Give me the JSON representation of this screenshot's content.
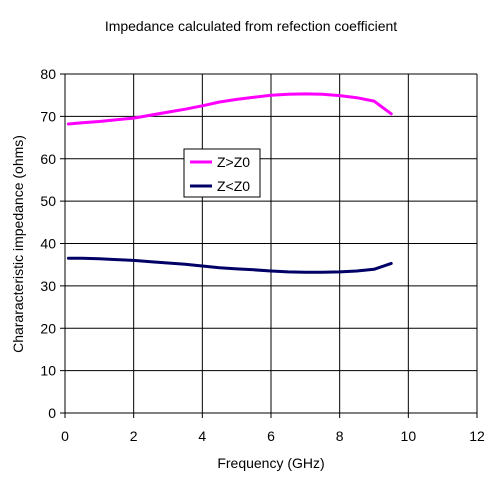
{
  "chart_data": {
    "type": "line",
    "title": "Impedance calculated from refection coefficient",
    "xlabel": "Frequency (GHz)",
    "ylabel": "Chararacteristic impedance (ohms)",
    "xlim": [
      0,
      12
    ],
    "ylim": [
      0,
      80
    ],
    "xticks": [
      0,
      2,
      4,
      6,
      8,
      10,
      12
    ],
    "yticks": [
      0,
      10,
      20,
      30,
      40,
      50,
      60,
      70,
      80
    ],
    "grid": true,
    "legend_position": "center-left",
    "series": [
      {
        "name": "Z>Z0",
        "color": "#ff00ff",
        "x": [
          0.1,
          0.5,
          1,
          1.5,
          2,
          2.5,
          3,
          3.5,
          4,
          4.5,
          5,
          5.5,
          6,
          6.5,
          7,
          7.5,
          8,
          8.5,
          9,
          9.5
        ],
        "y": [
          68.2,
          68.5,
          68.8,
          69.2,
          69.6,
          70.3,
          71.0,
          71.7,
          72.5,
          73.4,
          74.0,
          74.5,
          75.0,
          75.2,
          75.3,
          75.2,
          74.9,
          74.4,
          73.6,
          70.6
        ]
      },
      {
        "name": "Z<Z0",
        "color": "#000066",
        "x": [
          0.1,
          0.5,
          1,
          1.5,
          2,
          2.5,
          3,
          3.5,
          4,
          4.5,
          5,
          5.5,
          6,
          6.5,
          7,
          7.5,
          8,
          8.5,
          9,
          9.5
        ],
        "y": [
          36.5,
          36.5,
          36.4,
          36.2,
          36.0,
          35.7,
          35.4,
          35.1,
          34.7,
          34.3,
          34.0,
          33.8,
          33.5,
          33.3,
          33.2,
          33.2,
          33.3,
          33.5,
          33.9,
          35.3
        ]
      }
    ]
  }
}
